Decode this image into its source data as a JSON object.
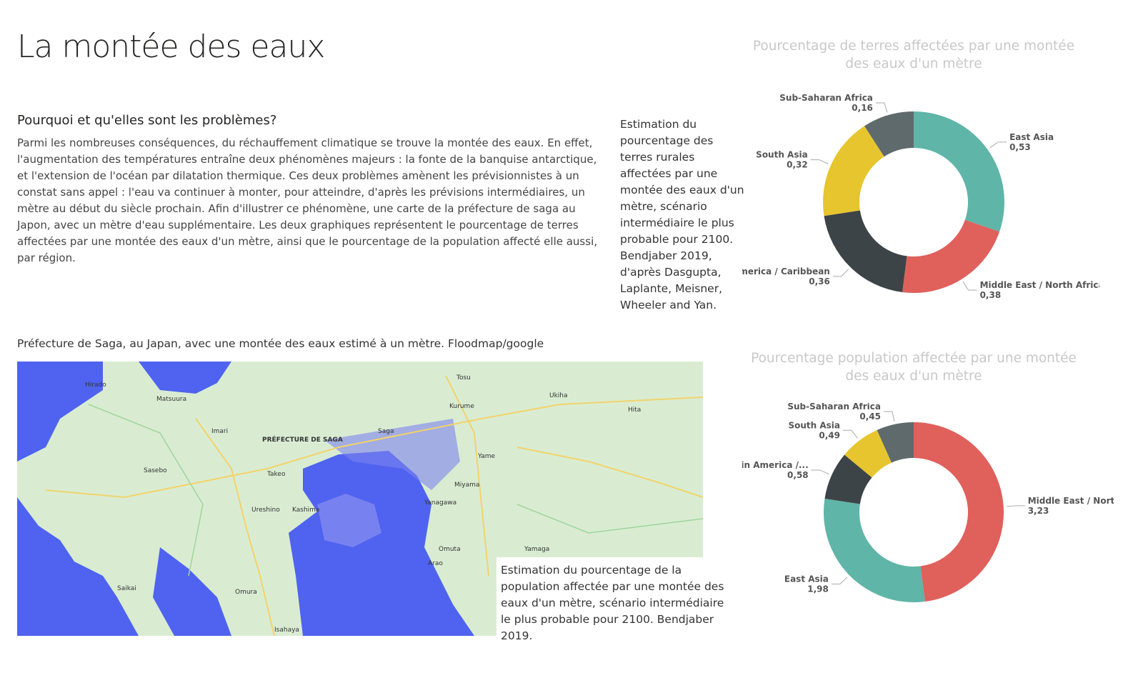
{
  "header": {
    "title": "La montée des eaux"
  },
  "intro": {
    "heading": "Pourquoi et qu'elles sont les problèmes?",
    "text": "Parmi les nombreuses conséquences, du réchauffement climatique se trouve la montée des eaux. En effet, l'augmentation des températures entraîne deux phénomènes majeurs : la fonte de la banquise antarctique, et l'extension de l'océan par dilatation thermique. Ces deux problèmes amènent les prévisionnistes à un constat sans appel : l'eau va continuer à monter, pour atteindre, d'après les prévisions intermédiaires, un mètre au début du siècle prochain. Afin d'illustrer ce phénomène, une carte de la préfecture de saga au Japon, avec un mètre d'eau supplémentaire. Les deux graphiques représentent le pourcentage de terres affectées par une montée des eaux d'un mètre, ainsi que le pourcentage de la population affecté elle aussi, par région."
  },
  "notes": [
    "Estimation du pourcentage des terres rurales affectées par une montée des eaux d'un mètre, scénario intermédiaire le plus probable pour 2100. Bendjaber 2019, d'après Dasgupta, Laplante, Meisner, Wheeler and Yan.",
    "Estimation du pourcentage de la population affectée par une montée des eaux d'un mètre, scénario intermédiaire le plus probable pour 2100. Bendjaber 2019."
  ],
  "map": {
    "caption": "Préfecture de Saga, au Japan, avec une montée des eaux estimé à un mètre. Floodmap/google",
    "labels": [
      "PRÉFECTURE DE SAGA",
      "Sasebo",
      "Imari",
      "Takeo",
      "Saga",
      "Kurume",
      "Tosu",
      "Kashima",
      "Ureshino",
      "Yanagawa",
      "Omuta",
      "Omura",
      "Saikai",
      "Hirado",
      "Matsuura",
      "Ukiha",
      "Hita",
      "Yame",
      "Miyama",
      "Yamaga",
      "Isahaya",
      "Arao"
    ]
  },
  "chart_data": [
    {
      "type": "donut",
      "title": "Pourcentage de terres affectées par une montée des eaux d'un mètre",
      "categories": [
        "East Asia",
        "Middle East / North Africa",
        "Latin America / Caribbean",
        "South Asia",
        "Sub-Saharan Africa"
      ],
      "values": [
        0.53,
        0.38,
        0.36,
        0.32,
        0.16
      ],
      "value_labels": [
        "0,53",
        "0,38",
        "0,36",
        "0,32",
        "0,16"
      ],
      "colors": [
        "#5fb5a8",
        "#e0605c",
        "#3d4447",
        "#e6c52e",
        "#5f6a6c"
      ]
    },
    {
      "type": "donut",
      "title": "Pourcentage population affectée par une montée des eaux d'un mètre",
      "categories": [
        "Middle East / North...",
        "East Asia",
        "Latin America /...",
        "South Asia",
        "Sub-Saharan Africa"
      ],
      "values": [
        3.23,
        1.98,
        0.58,
        0.49,
        0.45
      ],
      "value_labels": [
        "3,23",
        "1,98",
        "0,58",
        "0,49",
        "0,45"
      ],
      "colors": [
        "#e0605c",
        "#5fb5a8",
        "#3d4447",
        "#e6c52e",
        "#5f6a6c"
      ]
    }
  ]
}
